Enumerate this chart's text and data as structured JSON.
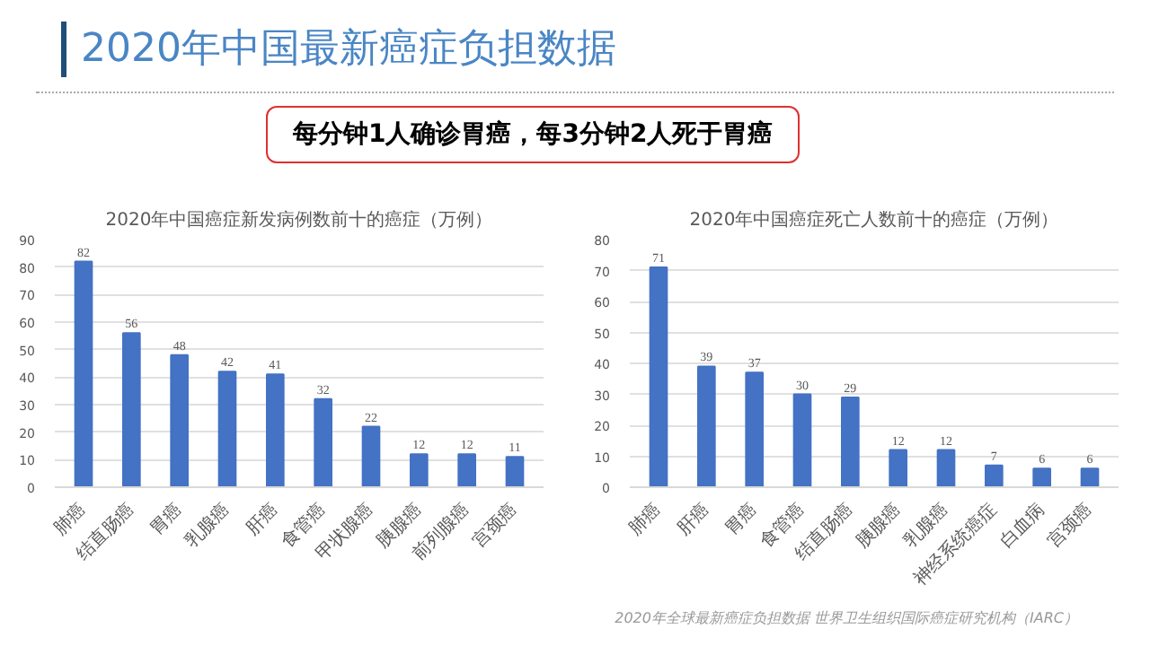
{
  "chart_data": [
    {
      "type": "bar",
      "title": "2020年中国癌症新发病例数前十的癌症（万例）",
      "annotations": [
        "2020年中国最新癌症负担数据",
        "每分钟1人确诊胃癌，每3分钟2人死于胃癌"
      ],
      "categories": [
        "肺癌",
        "结直肠癌",
        "胃癌",
        "乳腺癌",
        "肝癌",
        "食管癌",
        "甲状腺癌",
        "胰腺癌",
        "前列腺癌",
        "宫颈癌"
      ],
      "values": [
        82,
        56,
        48,
        42,
        41,
        32,
        22,
        12,
        12,
        11
      ],
      "color": "#4472c4",
      "ylim": [
        0,
        90
      ],
      "yticks": [
        0,
        10,
        20,
        30,
        40,
        50,
        60,
        70,
        80,
        90
      ],
      "grid": "y",
      "data_labels": true
    },
    {
      "type": "bar",
      "title": "2020年中国癌症死亡人数前十的癌症（万例）",
      "annotations": [
        "2020年全球最新癌症负担数据  世界卫生组织国际癌症研究机构（IARC）"
      ],
      "categories": [
        "肺癌",
        "肝癌",
        "胃癌",
        "食管癌",
        "结直肠癌",
        "胰腺癌",
        "乳腺癌",
        "神经系统癌症",
        "白血病",
        "宫颈癌"
      ],
      "values": [
        71,
        39,
        37,
        30,
        29,
        12,
        12,
        7,
        6,
        6
      ],
      "color": "#4472c4",
      "ylim": [
        0,
        80
      ],
      "yticks": [
        0,
        10,
        20,
        30,
        40,
        50,
        60,
        70,
        80
      ],
      "grid": "y",
      "data_labels": true
    }
  ]
}
